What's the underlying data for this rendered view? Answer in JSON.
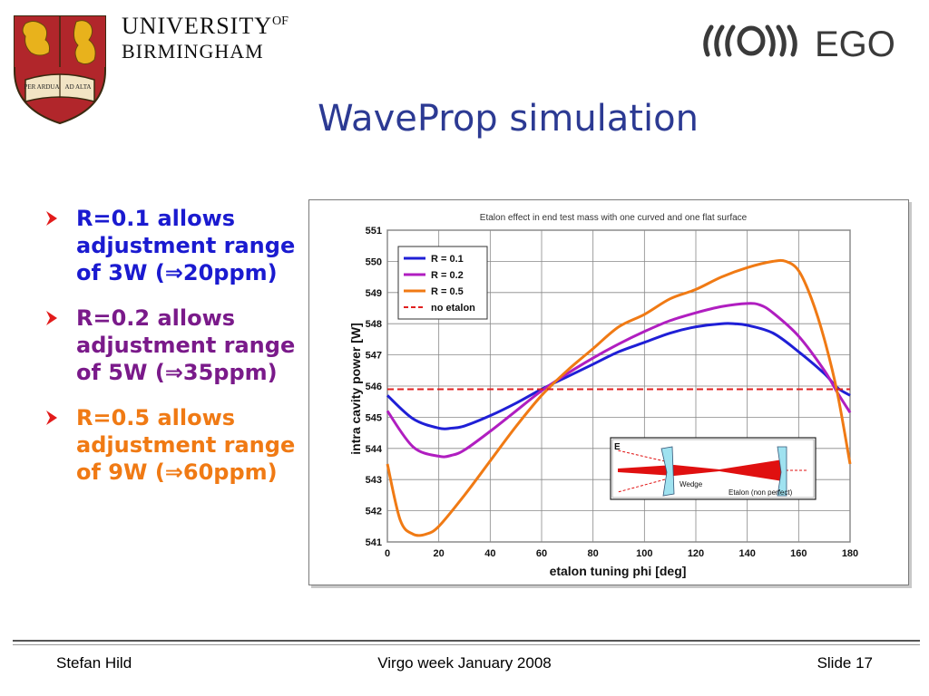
{
  "header": {
    "university_line1": "UNIVERSITY",
    "university_of": "OF",
    "university_line2": "BIRMINGHAM",
    "crest_motto_left": "PER ARDUA",
    "crest_motto_right": "AD ALTA",
    "ego_logo_text": "EGO",
    "crest_icon": "shield-crest-icon",
    "ego_icon": "ego-waves-icon"
  },
  "slide": {
    "title": "WaveProp simulation"
  },
  "bullets": [
    {
      "text": "R=0.1 allows adjustment range of 3W (⇒20ppm)",
      "color": "#1a1ad0"
    },
    {
      "text": "R=0.2 allows adjustment range of 5W (⇒35ppm)",
      "color": "#7a1a8a"
    },
    {
      "text": "R=0.5 allows adjustment range of 9W (⇒60ppm)",
      "color": "#f07a14"
    }
  ],
  "chart_data": {
    "type": "line",
    "title": "Etalon effect in end test mass with one curved and one flat surface",
    "xlabel": "etalon tuning phi [deg]",
    "ylabel": "intra cavity power [W]",
    "xlim": [
      0,
      180
    ],
    "ylim": [
      541,
      551
    ],
    "xticks": [
      0,
      20,
      40,
      60,
      80,
      100,
      120,
      140,
      160,
      180
    ],
    "yticks": [
      541,
      542,
      543,
      544,
      545,
      546,
      547,
      548,
      549,
      550,
      551
    ],
    "grid": true,
    "legend_position": "top-left",
    "series": [
      {
        "name": "R = 0.1",
        "color": "#1f1fd6",
        "dashed": false,
        "x": [
          0,
          10,
          20,
          25,
          30,
          40,
          50,
          60,
          70,
          80,
          90,
          100,
          110,
          120,
          130,
          135,
          140,
          150,
          160,
          170,
          175,
          180
        ],
        "y": [
          545.7,
          544.95,
          544.65,
          544.65,
          544.72,
          545.05,
          545.45,
          545.9,
          546.3,
          546.7,
          547.1,
          547.4,
          547.7,
          547.9,
          548.0,
          548.0,
          547.95,
          547.7,
          547.1,
          546.4,
          545.95,
          545.7
        ]
      },
      {
        "name": "R = 0.2",
        "color": "#b01ec0",
        "dashed": false,
        "x": [
          0,
          10,
          20,
          25,
          30,
          40,
          50,
          60,
          70,
          80,
          90,
          100,
          110,
          120,
          130,
          140,
          145,
          150,
          160,
          170,
          175,
          180
        ],
        "y": [
          545.2,
          544.05,
          543.75,
          543.78,
          543.95,
          544.55,
          545.2,
          545.85,
          546.4,
          546.9,
          547.35,
          547.75,
          548.1,
          548.35,
          548.55,
          548.65,
          548.6,
          548.35,
          547.6,
          546.5,
          545.8,
          545.15
        ]
      },
      {
        "name": "R = 0.5",
        "color": "#f07a14",
        "dashed": false,
        "x": [
          0,
          5,
          10,
          15,
          20,
          30,
          40,
          50,
          60,
          70,
          80,
          90,
          100,
          110,
          120,
          130,
          140,
          150,
          155,
          160,
          165,
          170,
          175,
          180
        ],
        "y": [
          543.5,
          541.7,
          541.25,
          541.25,
          541.5,
          542.5,
          543.6,
          544.7,
          545.7,
          546.5,
          547.2,
          547.9,
          548.3,
          548.8,
          549.1,
          549.5,
          549.8,
          550.0,
          550.0,
          549.7,
          548.8,
          547.5,
          545.8,
          543.5
        ]
      },
      {
        "name": "no etalon",
        "color": "#e02020",
        "dashed": true,
        "x": [
          0,
          180
        ],
        "y": [
          545.9,
          545.9
        ]
      }
    ],
    "inset": {
      "label": "E",
      "wedge_label": "Wedge",
      "etalon_label": "Etalon (non perfect)"
    }
  },
  "footer": {
    "author": "Stefan Hild",
    "event": "Virgo week January 2008",
    "slide_number": "Slide 17"
  }
}
